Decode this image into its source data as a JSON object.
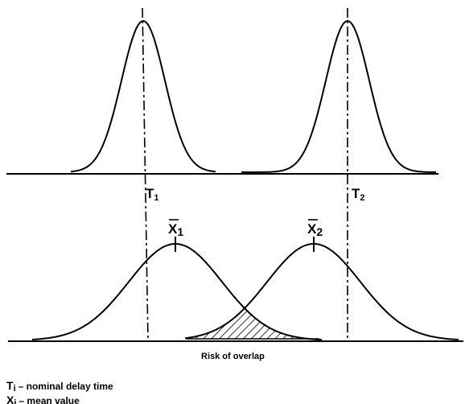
{
  "labels": {
    "t1": {
      "main": "T",
      "sub": "1"
    },
    "t2": {
      "main": "T",
      "sub": "2"
    },
    "x1": {
      "main": "X",
      "sub": "1"
    },
    "x2": {
      "main": "X",
      "sub": "2"
    },
    "overlap": "Risk of overlap"
  },
  "legend": [
    {
      "symbol": "T",
      "sub": "i",
      "text": "– nominal delay time"
    },
    {
      "symbol": "X",
      "sub": "i",
      "text": "– mean value"
    }
  ]
}
